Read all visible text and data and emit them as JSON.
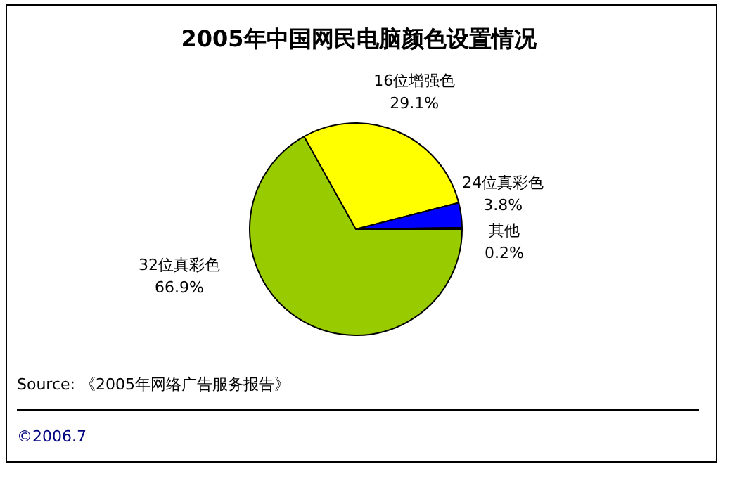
{
  "chart_data": {
    "type": "pie",
    "title": "2005年中国网民电脑颜色设置情况",
    "categories": [
      "32位真彩色",
      "16位增强色",
      "24位真彩色",
      "其他"
    ],
    "values": [
      66.9,
      29.1,
      3.8,
      0.2
    ],
    "colors": [
      "#99cc00",
      "#ffff00",
      "#0000ff",
      "#cc0000"
    ],
    "value_labels": [
      "66.9%",
      "29.1%",
      "3.8%",
      "0.2%"
    ],
    "legend": false,
    "annotations": [
      "Source: 《2005年网络广告服务报告》",
      "©2006.7"
    ]
  }
}
